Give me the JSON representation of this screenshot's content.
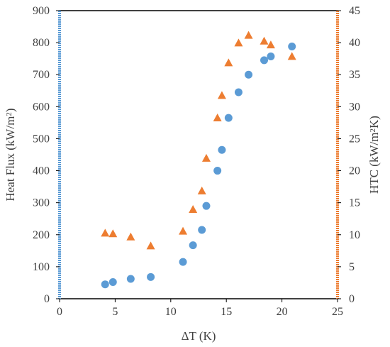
{
  "chart_data": {
    "type": "scatter",
    "x_axis": {
      "label": "ΔT (K)",
      "range": [
        0,
        25
      ],
      "ticks": [
        0,
        5,
        10,
        15,
        20,
        25
      ]
    },
    "y_axis_left": {
      "label": "Heat Flux (kW/m²)",
      "range": [
        0,
        900
      ],
      "ticks": [
        0,
        100,
        200,
        300,
        400,
        500,
        600,
        700,
        800,
        900
      ],
      "color": "#5b9bd5"
    },
    "y_axis_right": {
      "label": "HTC (kW/m²K)",
      "range": [
        0,
        45
      ],
      "ticks": [
        0,
        5,
        10,
        15,
        20,
        25,
        30,
        35,
        40,
        45
      ],
      "color": "#ed7d31"
    },
    "grid": false,
    "legend": "none",
    "series": [
      {
        "marker": "circle",
        "color": "#5b9bd5",
        "axis": "left",
        "points": [
          [
            4.1,
            45
          ],
          [
            4.8,
            52
          ],
          [
            6.4,
            62
          ],
          [
            8.2,
            68
          ],
          [
            11.1,
            115
          ],
          [
            12.0,
            167
          ],
          [
            12.8,
            215
          ],
          [
            13.2,
            290
          ],
          [
            14.2,
            400
          ],
          [
            14.6,
            465
          ],
          [
            15.2,
            565
          ],
          [
            16.1,
            645
          ],
          [
            17.0,
            700
          ],
          [
            18.4,
            745
          ],
          [
            19.0,
            757
          ],
          [
            20.9,
            788
          ]
        ]
      },
      {
        "marker": "triangle",
        "color": "#ed7d31",
        "axis": "right",
        "points": [
          [
            4.1,
            10.2
          ],
          [
            4.8,
            10.1
          ],
          [
            6.4,
            9.6
          ],
          [
            8.2,
            8.2
          ],
          [
            11.1,
            10.5
          ],
          [
            12.0,
            13.9
          ],
          [
            12.8,
            16.8
          ],
          [
            13.2,
            21.9
          ],
          [
            14.2,
            28.2
          ],
          [
            14.6,
            31.7
          ],
          [
            15.2,
            36.8
          ],
          [
            16.1,
            39.9
          ],
          [
            17.0,
            41.1
          ],
          [
            18.4,
            40.2
          ],
          [
            19.0,
            39.6
          ],
          [
            20.9,
            37.8
          ]
        ]
      }
    ]
  }
}
